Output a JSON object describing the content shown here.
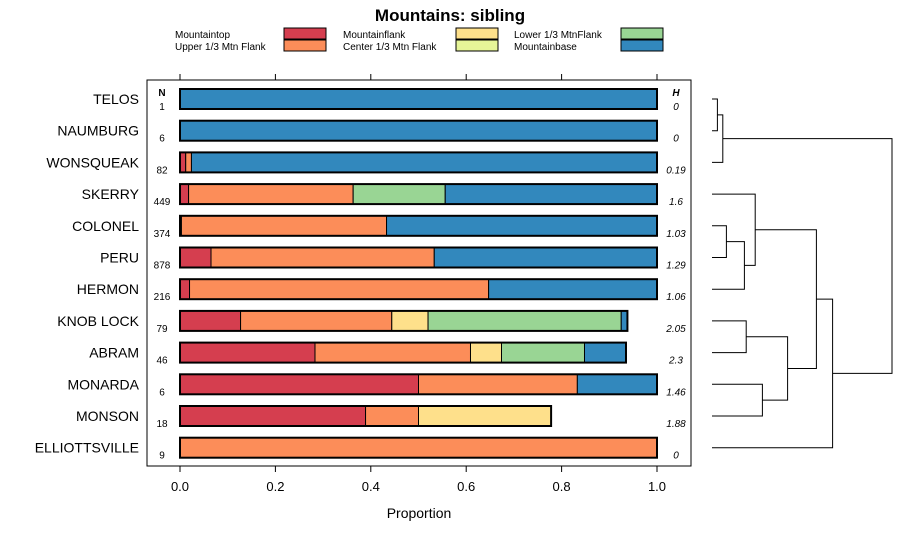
{
  "chart_data": {
    "type": "bar",
    "stacked": true,
    "orientation": "horizontal",
    "title": "Mountains: sibling",
    "xlabel": "Proportion",
    "ylabel": "",
    "xlim": [
      -0.06,
      1.07
    ],
    "xticks": [
      0.0,
      0.2,
      0.4,
      0.6,
      0.8,
      1.0
    ],
    "xtick_labels": [
      "0.0",
      "0.2",
      "0.4",
      "0.6",
      "0.8",
      "1.0"
    ],
    "n_header": "N",
    "h_header": "H",
    "legend_position": "top",
    "series": [
      {
        "name": "Mountaintop",
        "color": "#d53e4f"
      },
      {
        "name": "Upper 1/3 Mtn Flank",
        "color": "#fc8d59"
      },
      {
        "name": "Mountainflank",
        "color": "#fee08b"
      },
      {
        "name": "Center 1/3 Mtn Flank",
        "color": "#e6f598"
      },
      {
        "name": "Lower 1/3 MtnFlank",
        "color": "#99d594"
      },
      {
        "name": "Mountainbase",
        "color": "#3288bd"
      }
    ],
    "legend_order": [
      "Mountaintop",
      "Mountainflank",
      "Lower 1/3 MtnFlank",
      "Upper 1/3 Mtn Flank",
      "Center 1/3 Mtn Flank",
      "Mountainbase"
    ],
    "rows": [
      {
        "label": "TELOS",
        "n": "1",
        "h": "0",
        "values": [
          0,
          0,
          0,
          0,
          0,
          1.0
        ]
      },
      {
        "label": "NAUMBURG",
        "n": "6",
        "h": "0",
        "values": [
          0,
          0,
          0,
          0,
          0,
          1.0
        ]
      },
      {
        "label": "WONSQUEAK",
        "n": "82",
        "h": "0.19",
        "values": [
          0.012,
          0.012,
          0,
          0,
          0,
          0.976
        ]
      },
      {
        "label": "SKERRY",
        "n": "449",
        "h": "1.6",
        "values": [
          0.018,
          0.345,
          0,
          0,
          0.193,
          0.444
        ]
      },
      {
        "label": "COLONEL",
        "n": "374",
        "h": "1.03",
        "values": [
          0.003,
          0.43,
          0,
          0,
          0,
          0.567
        ]
      },
      {
        "label": "PERU",
        "n": "878",
        "h": "1.29",
        "values": [
          0.065,
          0.468,
          0,
          0,
          0,
          0.467
        ]
      },
      {
        "label": "HERMON",
        "n": "216",
        "h": "1.06",
        "values": [
          0.02,
          0.627,
          0,
          0,
          0,
          0.353
        ]
      },
      {
        "label": "KNOB LOCK",
        "n": "79",
        "h": "2.05",
        "values": [
          0.127,
          0.317,
          0.076,
          0,
          0.405,
          0.013
        ]
      },
      {
        "label": "ABRAM",
        "n": "46",
        "h": "2.3",
        "values": [
          0.283,
          0.326,
          0.065,
          0,
          0.174,
          0.087
        ]
      },
      {
        "label": "MONARDA",
        "n": "6",
        "h": "1.46",
        "values": [
          0.5,
          0.333,
          0,
          0,
          0,
          0.167
        ]
      },
      {
        "label": "MONSON",
        "n": "18",
        "h": "1.88",
        "values": [
          0.389,
          0.111,
          0.278,
          0,
          0,
          0
        ]
      },
      {
        "label": "ELLIOTTSVILLE",
        "n": "9",
        "h": "0",
        "values": [
          0,
          1.0,
          0,
          0,
          0,
          0
        ]
      }
    ],
    "dendrogram": {
      "type": "hierarchical-clustering",
      "leaf_order": [
        "TELOS",
        "NAUMBURG",
        "WONSQUEAK",
        "SKERRY",
        "COLONEL",
        "PERU",
        "HERMON",
        "KNOB LOCK",
        "ABRAM",
        "MONARDA",
        "MONSON",
        "ELLIOTTSVILLE"
      ],
      "merges": [
        {
          "a": "TELOS",
          "b": "NAUMBURG",
          "height": 0.03
        },
        {
          "a": "m0",
          "b": "WONSQUEAK",
          "height": 0.06
        },
        {
          "a": "COLONEL",
          "b": "PERU",
          "height": 0.08
        },
        {
          "a": "m2",
          "b": "HERMON",
          "height": 0.18
        },
        {
          "a": "SKERRY",
          "b": "m3",
          "height": 0.24
        },
        {
          "a": "KNOB LOCK",
          "b": "ABRAM",
          "height": 0.19
        },
        {
          "a": "MONARDA",
          "b": "MONSON",
          "height": 0.28
        },
        {
          "a": "m5",
          "b": "m6",
          "height": 0.42
        },
        {
          "a": "m4",
          "b": "m7",
          "height": 0.58
        },
        {
          "a": "m8",
          "b": "ELLIOTTSVILLE",
          "height": 0.67
        },
        {
          "a": "m1",
          "b": "m9",
          "height": 1.0
        }
      ]
    }
  }
}
